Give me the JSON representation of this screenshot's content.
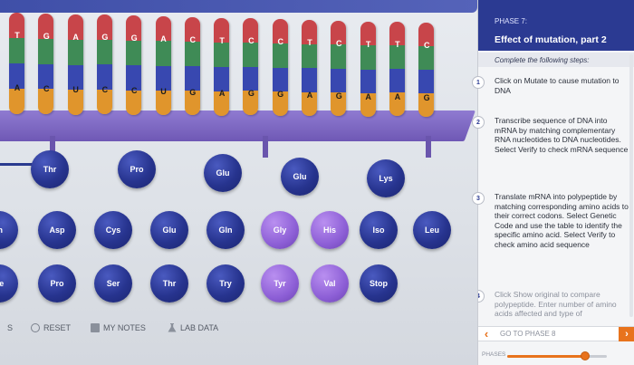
{
  "dna_strand": {
    "template_bases": [
      "T",
      "G",
      "A",
      "G",
      "G",
      "A",
      "C",
      "T",
      "C",
      "C",
      "T",
      "C",
      "T",
      "T",
      "C"
    ],
    "mrna_bases": [
      "A",
      "C",
      "U",
      "C",
      "C",
      "U",
      "G",
      "A",
      "G",
      "G",
      "A",
      "G",
      "A",
      "A",
      "G"
    ]
  },
  "colors": {
    "red": "#c8454a",
    "green": "#3f8b56",
    "blue": "#3848b0",
    "orange": "#e0952c",
    "aa_blue": "#27348f",
    "aa_purple": "#8d5fd6",
    "accent": "#e8731d",
    "panel_header": "#2b3a92"
  },
  "polypeptide": [
    "Thr",
    "Pro",
    "Glu",
    "Glu",
    "Lys"
  ],
  "amino_acid_row_1": [
    "In",
    "Asp",
    "Cys",
    "Glu",
    "Gln",
    "Gly",
    "His",
    "Iso",
    "Leu"
  ],
  "amino_acid_row_2": [
    "he",
    "Pro",
    "Ser",
    "Thr",
    "Try",
    "Tyr",
    "Val",
    "Stop"
  ],
  "toolbar": {
    "left_fragment": "S",
    "reset_label": "RESET",
    "notes_label": "MY NOTES",
    "lab_data_label": "LAB DATA"
  },
  "panel": {
    "phase_label": "PHASE 7:",
    "title": "Effect of mutation, part 2",
    "instructions": "Complete the following steps:",
    "steps": [
      {
        "num": "1",
        "text": "Click on Mutate to cause mutation to DNA"
      },
      {
        "num": "2",
        "text": "Transcribe sequence of DNA into mRNA by matching complementary RNA nucleotides to DNA nucleotides. Select Verify to check mRNA sequence"
      },
      {
        "num": "3",
        "text": "Translate mRNA into polypeptide by matching corresponding amino acids to their correct codons. Select Genetic Code and use the table to identify the specific amino acid. Select Verify to check amino acid sequence"
      },
      {
        "num": "4",
        "text": "Click Show original to compare polypeptide. Enter number of amino acids affected and type of"
      }
    ],
    "goto_label": "GO TO PHASE 8",
    "phases_label": "PHASES",
    "phase_progress": 0.78
  }
}
